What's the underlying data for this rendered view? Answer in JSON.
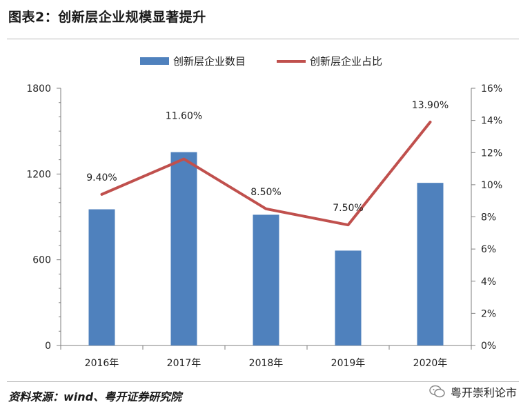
{
  "figure": {
    "title": "图表2：创新层企业规模显著提升",
    "source": "资料来源：wind、粤开证券研究院",
    "watermark": "粤开崇利论市"
  },
  "chart_data": {
    "type": "bar",
    "categories": [
      "2016年",
      "2017年",
      "2018年",
      "2019年",
      "2020年"
    ],
    "series": [
      {
        "name": "创新层企业数目",
        "type": "bar",
        "axis": "left",
        "color": "#4f81bd",
        "values": [
          953,
          1353,
          915,
          664,
          1138
        ]
      },
      {
        "name": "创新层企业占比",
        "type": "line",
        "axis": "right",
        "color": "#c0504d",
        "values": [
          9.4,
          11.6,
          8.5,
          7.5,
          13.9
        ],
        "labels": [
          "9.40%",
          "11.60%",
          "8.50%",
          "7.50%",
          "13.90%"
        ]
      }
    ],
    "left_axis": {
      "ylim": [
        0,
        1800
      ],
      "ticks": [
        "0",
        "600",
        "1200",
        "1800"
      ],
      "tick_values": [
        0,
        600,
        1200,
        1800
      ]
    },
    "right_axis": {
      "ylim": [
        0,
        16
      ],
      "ticks": [
        "0%",
        "2%",
        "4%",
        "6%",
        "8%",
        "10%",
        "12%",
        "14%",
        "16%"
      ],
      "tick_values": [
        0,
        2,
        4,
        6,
        8,
        10,
        12,
        14,
        16
      ]
    },
    "legend_position": "top-center",
    "grid": false
  }
}
